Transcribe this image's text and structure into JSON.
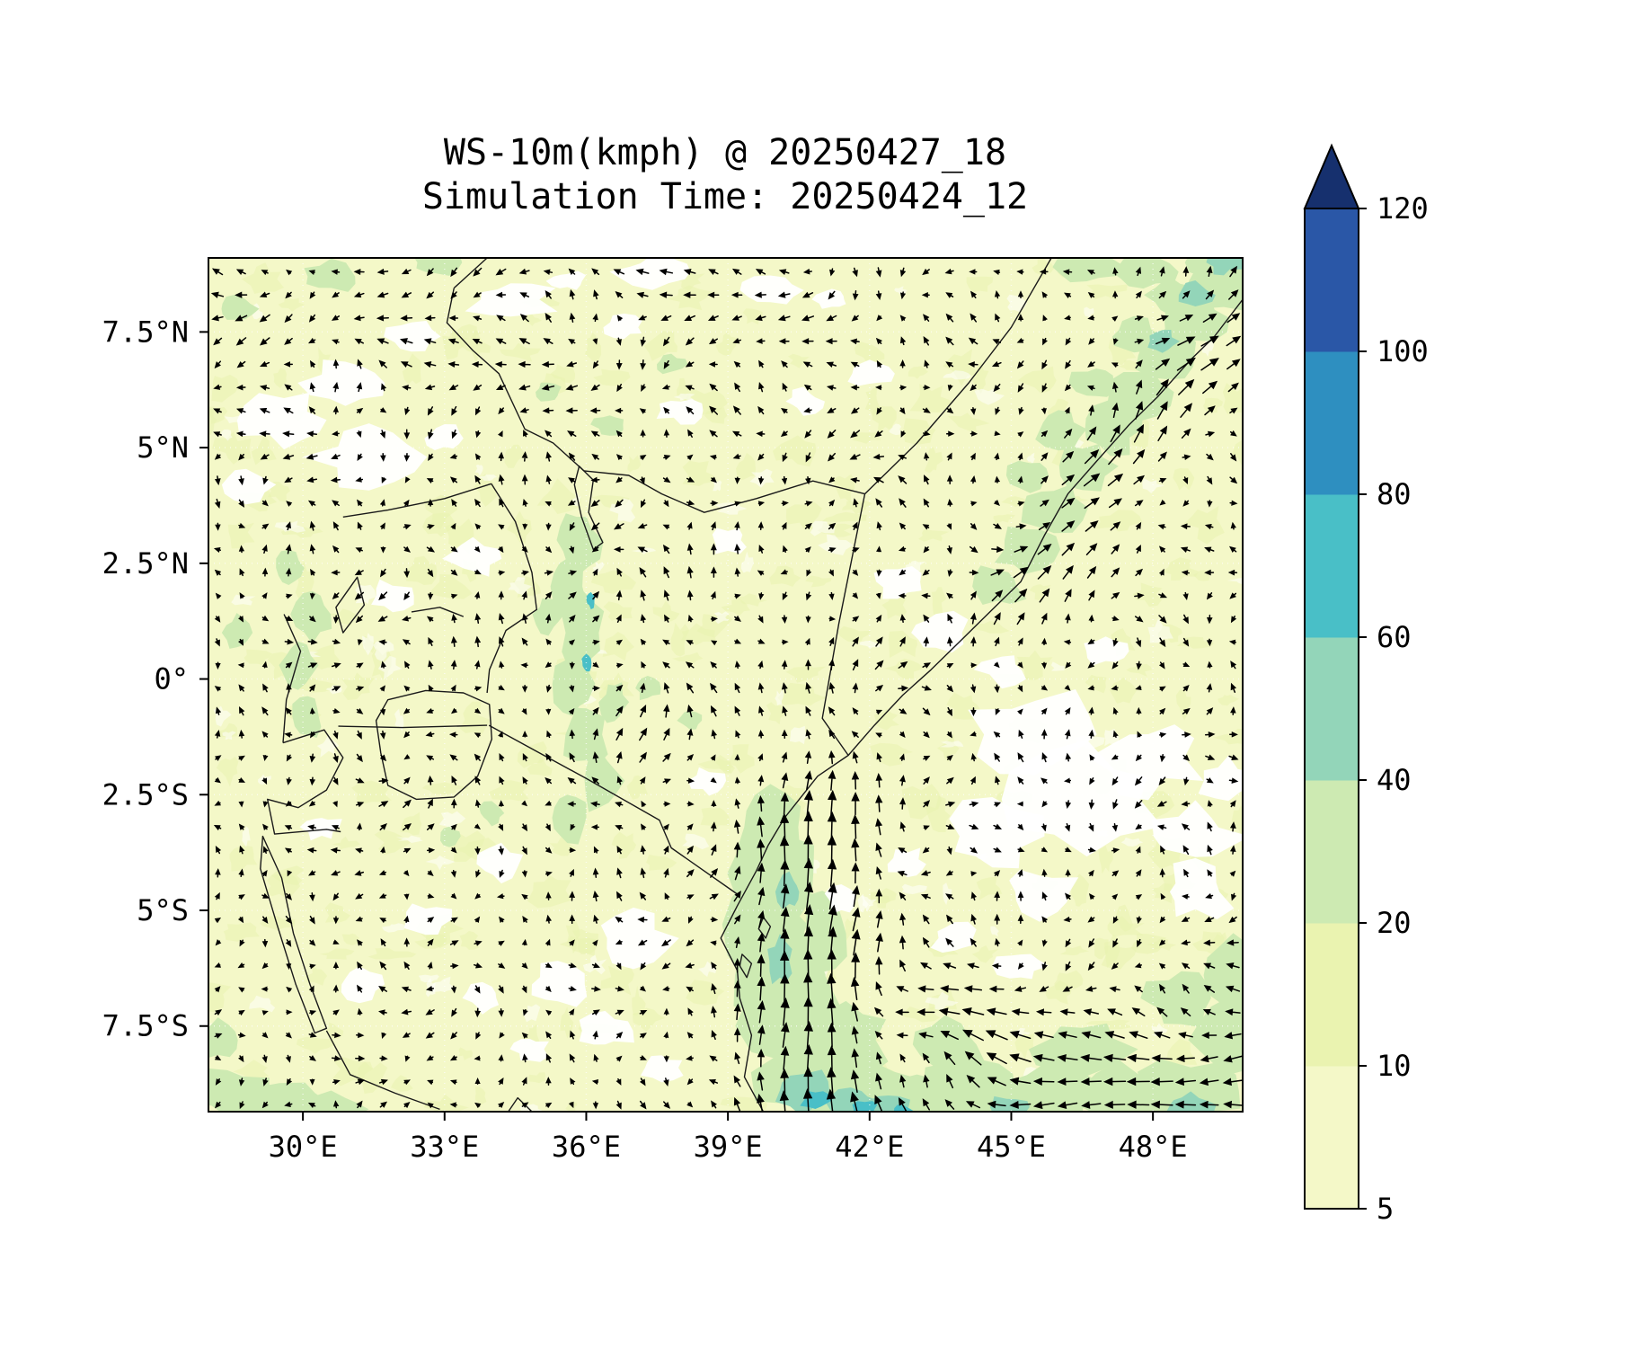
{
  "title": {
    "line1": "WS-10m(kmph) @ 20250427_18",
    "line2": "Simulation Time: 20250424_12"
  },
  "chart_data": {
    "type": "heatmap",
    "subtype": "filled-contour wind speed map with quiver wind vectors over East Africa",
    "title": "WS-10m(kmph) @ 20250427_18",
    "subtitle": "Simulation Time: 20250424_12",
    "variable": "10 m wind speed",
    "units": "kmph",
    "valid_time_label": "20250427_18",
    "simulation_time_label": "20250424_12",
    "x_axis": {
      "tick_labels": [
        "30°E",
        "33°E",
        "36°E",
        "39°E",
        "42°E",
        "45°E",
        "48°E"
      ],
      "tick_values_deg_east": [
        30,
        33,
        36,
        39,
        42,
        45,
        48
      ],
      "range_deg_east": [
        28.0,
        49.9
      ]
    },
    "y_axis": {
      "tick_labels": [
        "7.5°N",
        "5°N",
        "2.5°N",
        "0°",
        "2.5°S",
        "5°S",
        "7.5°S"
      ],
      "tick_values_deg_north": [
        7.5,
        5,
        2.5,
        0,
        -2.5,
        -5,
        -7.5
      ],
      "range_deg_north": [
        -9.35,
        9.1
      ]
    },
    "colorbar": {
      "orientation": "vertical",
      "extend": "max",
      "boundaries": [
        5,
        10,
        20,
        40,
        60,
        80,
        100,
        120
      ],
      "tick_labels": [
        "5",
        "10",
        "20",
        "40",
        "60",
        "80",
        "100",
        "120"
      ],
      "segment_colors": [
        "#f4f8c8",
        "#eaf3b0",
        "#cdeab2",
        "#93d5b9",
        "#49bfc7",
        "#2e8fc0",
        "#2a57a7"
      ],
      "extend_color": "#16306e"
    },
    "map_features": [
      "East Africa / Horn of Africa coastline",
      "country borders (Kenya, Tanzania, Uganda, Ethiopia, Somalia, South Sudan, Rwanda, Burundi)",
      "Lake Victoria",
      "Lake Turkana",
      "Lake Tanganyika",
      "Lake Albert",
      "Lake Kyoga",
      "Zanzibar and Pemba islands"
    ],
    "wind_field_summary": [
      {
        "region": "coastal strip 39-43°E south of 2.5°S",
        "pattern": "strong southerly jet, long arrows pointing north",
        "speed_kmph": "20-50"
      },
      {
        "region": "Somali coast 44-50°E north of 2°N",
        "pattern": "southwesterly flow fanning toward the northeast along the coast",
        "speed_kmph": "15-40"
      },
      {
        "region": "southeast corner south of 7°S east of 42°E",
        "pattern": "strong easterlies with a cyclonic swirl near 43°E 8°S",
        "speed_kmph": "20-40"
      },
      {
        "region": "interior plateau",
        "pattern": "light variable winds",
        "speed_kmph": "5-15"
      },
      {
        "region": "white patches e.g. 44-48°E near 1-3.5°S",
        "pattern": "near calm",
        "speed_kmph": "<5"
      }
    ],
    "background_speed_kmph": "5-10 over most of the domain"
  }
}
